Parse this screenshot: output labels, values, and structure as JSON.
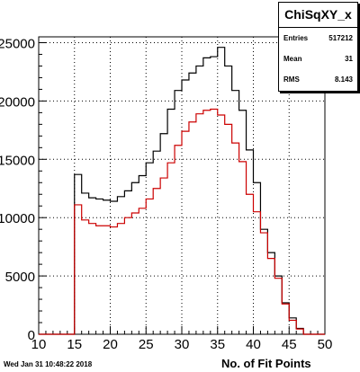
{
  "chart_data": {
    "type": "histogram",
    "title": "ChiSqXY_x",
    "xlabel": "No. of Fit Points",
    "ylabel": "",
    "xlim": [
      10,
      50
    ],
    "ylim": [
      0,
      25500
    ],
    "xticks": [
      "10",
      "15",
      "20",
      "25",
      "30",
      "35",
      "40",
      "45",
      "50"
    ],
    "yticks": [
      "0",
      "5000",
      "10000",
      "15000",
      "20000",
      "25000"
    ],
    "ytick_values": [
      0,
      5000,
      10000,
      15000,
      20000,
      25000
    ],
    "bin_width": 1,
    "bin_edges_start": 10,
    "grid": true,
    "series": [
      {
        "color": "#000000",
        "values": [
          0,
          0,
          0,
          0,
          0,
          13700,
          12100,
          11700,
          11600,
          11500,
          11400,
          11800,
          12300,
          13000,
          13600,
          14700,
          15700,
          17200,
          19300,
          20900,
          21800,
          22400,
          23000,
          23700,
          23800,
          24600,
          23000,
          20900,
          19200,
          15800,
          13000,
          9000,
          7000,
          5000,
          2700,
          1400,
          500,
          0,
          0,
          0
        ]
      },
      {
        "color": "#cc0000",
        "values": [
          0,
          0,
          0,
          0,
          0,
          11100,
          9800,
          9500,
          9300,
          9300,
          9200,
          9500,
          10000,
          10400,
          10800,
          11600,
          12500,
          13400,
          14700,
          16200,
          17400,
          18200,
          18900,
          19200,
          19300,
          18800,
          18000,
          16400,
          14800,
          12000,
          10500,
          8700,
          6500,
          4800,
          2600,
          1200,
          450,
          0,
          0,
          0
        ]
      }
    ]
  },
  "stats": {
    "title": "ChiSqXY_x",
    "entries_label": "Entries",
    "entries_value": "517212",
    "mean_label": "Mean",
    "mean_value": "31",
    "rms_label": "RMS",
    "rms_value": "8.143"
  },
  "timestamp": "Wed Jan 31 10:48:22 2018"
}
